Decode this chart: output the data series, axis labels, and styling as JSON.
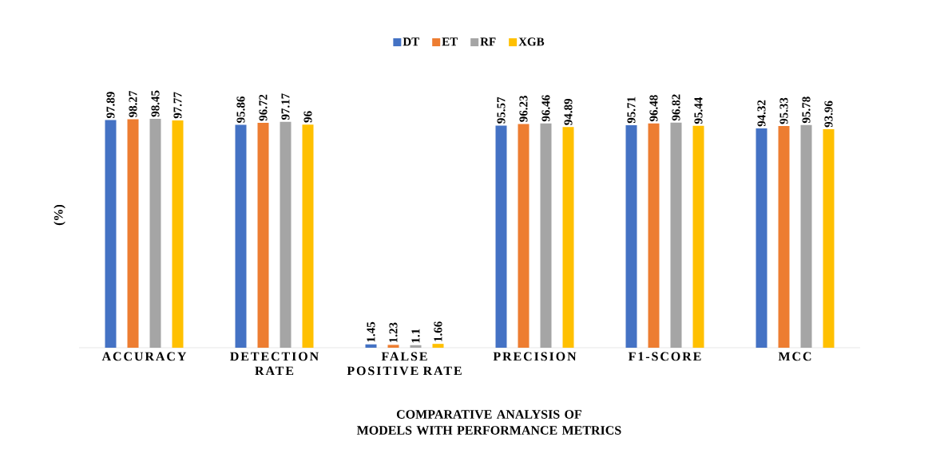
{
  "chart_data": {
    "type": "bar",
    "xlabel": "COMPARATIVE ANALYSIS OF MODELS WITH PERFORMANCE METRICS",
    "ylabel": "(%)",
    "categories": [
      "ACCURACY",
      "DETECTION RATE",
      "FALSE POSITIVE RATE",
      "PRECISION",
      "F1-SCORE",
      "MCC"
    ],
    "series": [
      {
        "name": "DT",
        "color": "#4472c4",
        "values": [
          97.89,
          95.86,
          1.45,
          95.57,
          95.71,
          94.32
        ]
      },
      {
        "name": "ET",
        "color": "#ed7d31",
        "values": [
          98.27,
          96.72,
          1.23,
          96.23,
          96.48,
          95.33
        ]
      },
      {
        "name": "RF",
        "color": "#a5a5a5",
        "values": [
          98.45,
          97.17,
          1.1,
          96.46,
          96.82,
          95.78
        ]
      },
      {
        "name": "XGB",
        "color": "#ffc000",
        "values": [
          97.77,
          96,
          1.66,
          94.89,
          95.44,
          93.96
        ]
      }
    ],
    "data_labels": true,
    "legend": "top"
  }
}
